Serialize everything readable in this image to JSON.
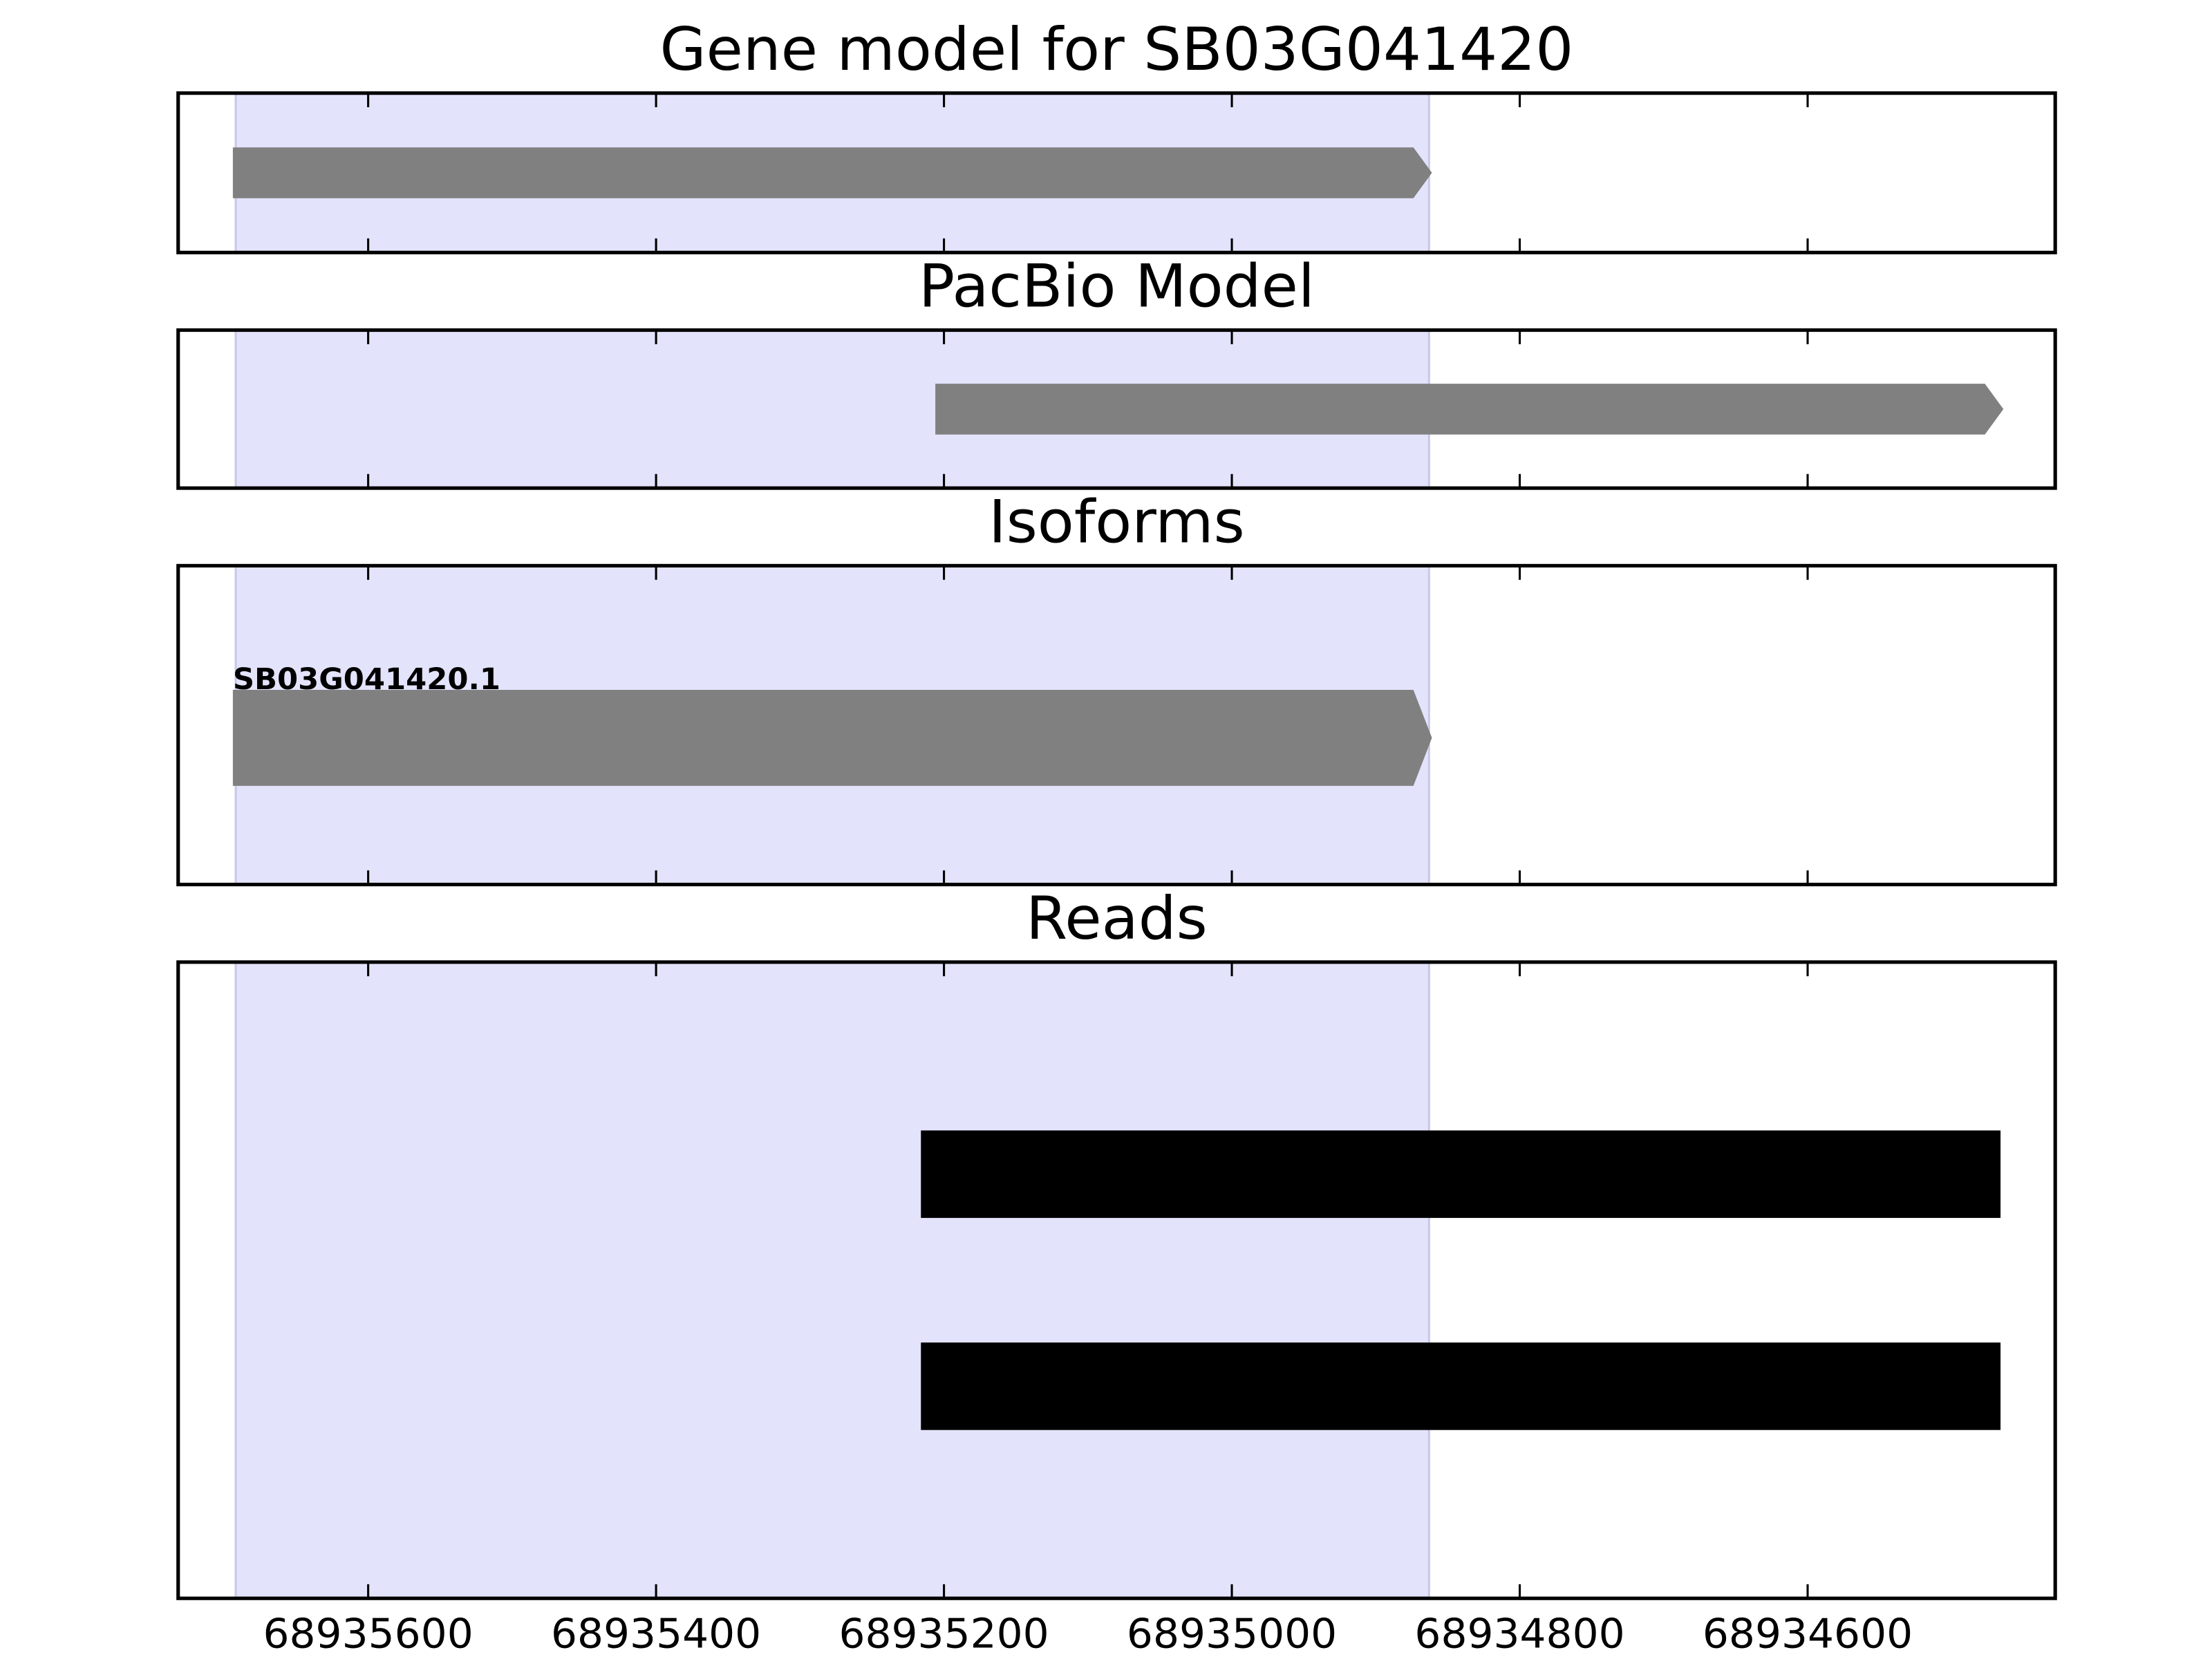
{
  "chart_data": [
    {
      "type": "track",
      "title": "Gene model for SB03G041420",
      "xlim": [
        68935732,
        68934428
      ],
      "xticks": [
        68935600,
        68935400,
        68935200,
        68935000,
        68934800,
        68934600
      ],
      "highlight": {
        "start": 68935692,
        "end": 68934863,
        "color": "#e3e3fc"
      },
      "color": "#808080",
      "shape": "arrow",
      "features": [
        {
          "start": 68935694,
          "end": 68934861
        }
      ]
    },
    {
      "type": "track",
      "title": "PacBio Model",
      "xlim": [
        68935732,
        68934428
      ],
      "xticks": [
        68935600,
        68935400,
        68935200,
        68935000,
        68934800,
        68934600
      ],
      "highlight": {
        "start": 68935692,
        "end": 68934863,
        "color": "#e3e3fc"
      },
      "color": "#808080",
      "shape": "arrow",
      "features": [
        {
          "start": 68935206,
          "end": 68934464
        }
      ]
    },
    {
      "type": "track",
      "title": "Isoforms",
      "xlim": [
        68935732,
        68934428
      ],
      "xticks": [
        68935600,
        68935400,
        68935200,
        68935000,
        68934800,
        68934600
      ],
      "highlight": {
        "start": 68935692,
        "end": 68934863,
        "color": "#e3e3fc"
      },
      "color": "#808080",
      "shape": "arrow",
      "features": [
        {
          "label": "SB03G041420.1",
          "start": 68935694,
          "end": 68934861
        }
      ]
    },
    {
      "type": "track",
      "title": "Reads",
      "xlim": [
        68935732,
        68934428
      ],
      "xticks": [
        68935600,
        68935400,
        68935200,
        68935000,
        68934800,
        68934600
      ],
      "highlight": {
        "start": 68935692,
        "end": 68934863,
        "color": "#e3e3fc"
      },
      "color": "#000000",
      "shape": "box",
      "tick_labels": true,
      "features": [
        {
          "start": 68935216,
          "end": 68934466
        },
        {
          "start": 68935216,
          "end": 68934466
        }
      ]
    }
  ]
}
